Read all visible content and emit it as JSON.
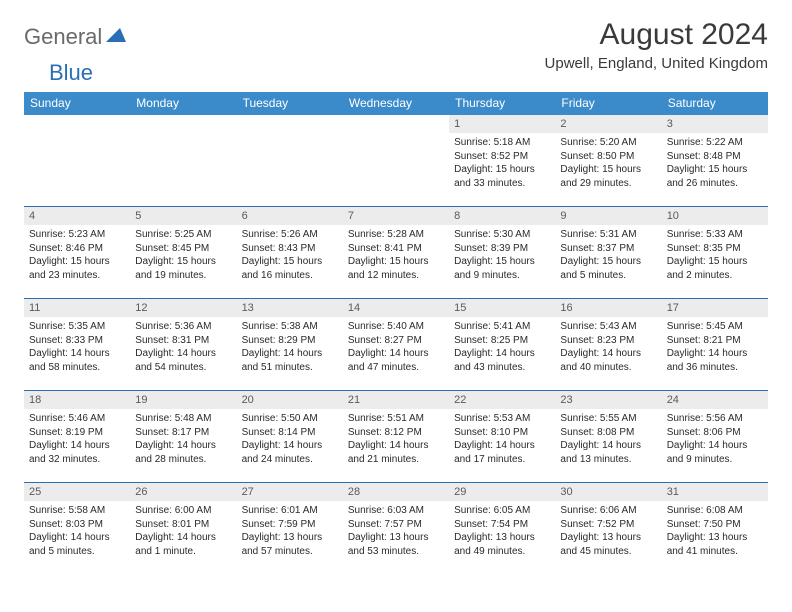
{
  "logo": {
    "part1": "General",
    "part2": "Blue",
    "triangle_color": "#2a6fb5"
  },
  "title": "August 2024",
  "location": "Upwell, England, United Kingdom",
  "header_bg": "#3b8bca",
  "daynum_bg": "#ececec",
  "border_color": "#2a6fb5",
  "daynames": [
    "Sunday",
    "Monday",
    "Tuesday",
    "Wednesday",
    "Thursday",
    "Friday",
    "Saturday"
  ],
  "weeks": [
    [
      {
        "n": "",
        "sr": "",
        "ss": "",
        "dl1": "",
        "dl2": ""
      },
      {
        "n": "",
        "sr": "",
        "ss": "",
        "dl1": "",
        "dl2": ""
      },
      {
        "n": "",
        "sr": "",
        "ss": "",
        "dl1": "",
        "dl2": ""
      },
      {
        "n": "",
        "sr": "",
        "ss": "",
        "dl1": "",
        "dl2": ""
      },
      {
        "n": "1",
        "sr": "Sunrise: 5:18 AM",
        "ss": "Sunset: 8:52 PM",
        "dl1": "Daylight: 15 hours",
        "dl2": "and 33 minutes."
      },
      {
        "n": "2",
        "sr": "Sunrise: 5:20 AM",
        "ss": "Sunset: 8:50 PM",
        "dl1": "Daylight: 15 hours",
        "dl2": "and 29 minutes."
      },
      {
        "n": "3",
        "sr": "Sunrise: 5:22 AM",
        "ss": "Sunset: 8:48 PM",
        "dl1": "Daylight: 15 hours",
        "dl2": "and 26 minutes."
      }
    ],
    [
      {
        "n": "4",
        "sr": "Sunrise: 5:23 AM",
        "ss": "Sunset: 8:46 PM",
        "dl1": "Daylight: 15 hours",
        "dl2": "and 23 minutes."
      },
      {
        "n": "5",
        "sr": "Sunrise: 5:25 AM",
        "ss": "Sunset: 8:45 PM",
        "dl1": "Daylight: 15 hours",
        "dl2": "and 19 minutes."
      },
      {
        "n": "6",
        "sr": "Sunrise: 5:26 AM",
        "ss": "Sunset: 8:43 PM",
        "dl1": "Daylight: 15 hours",
        "dl2": "and 16 minutes."
      },
      {
        "n": "7",
        "sr": "Sunrise: 5:28 AM",
        "ss": "Sunset: 8:41 PM",
        "dl1": "Daylight: 15 hours",
        "dl2": "and 12 minutes."
      },
      {
        "n": "8",
        "sr": "Sunrise: 5:30 AM",
        "ss": "Sunset: 8:39 PM",
        "dl1": "Daylight: 15 hours",
        "dl2": "and 9 minutes."
      },
      {
        "n": "9",
        "sr": "Sunrise: 5:31 AM",
        "ss": "Sunset: 8:37 PM",
        "dl1": "Daylight: 15 hours",
        "dl2": "and 5 minutes."
      },
      {
        "n": "10",
        "sr": "Sunrise: 5:33 AM",
        "ss": "Sunset: 8:35 PM",
        "dl1": "Daylight: 15 hours",
        "dl2": "and 2 minutes."
      }
    ],
    [
      {
        "n": "11",
        "sr": "Sunrise: 5:35 AM",
        "ss": "Sunset: 8:33 PM",
        "dl1": "Daylight: 14 hours",
        "dl2": "and 58 minutes."
      },
      {
        "n": "12",
        "sr": "Sunrise: 5:36 AM",
        "ss": "Sunset: 8:31 PM",
        "dl1": "Daylight: 14 hours",
        "dl2": "and 54 minutes."
      },
      {
        "n": "13",
        "sr": "Sunrise: 5:38 AM",
        "ss": "Sunset: 8:29 PM",
        "dl1": "Daylight: 14 hours",
        "dl2": "and 51 minutes."
      },
      {
        "n": "14",
        "sr": "Sunrise: 5:40 AM",
        "ss": "Sunset: 8:27 PM",
        "dl1": "Daylight: 14 hours",
        "dl2": "and 47 minutes."
      },
      {
        "n": "15",
        "sr": "Sunrise: 5:41 AM",
        "ss": "Sunset: 8:25 PM",
        "dl1": "Daylight: 14 hours",
        "dl2": "and 43 minutes."
      },
      {
        "n": "16",
        "sr": "Sunrise: 5:43 AM",
        "ss": "Sunset: 8:23 PM",
        "dl1": "Daylight: 14 hours",
        "dl2": "and 40 minutes."
      },
      {
        "n": "17",
        "sr": "Sunrise: 5:45 AM",
        "ss": "Sunset: 8:21 PM",
        "dl1": "Daylight: 14 hours",
        "dl2": "and 36 minutes."
      }
    ],
    [
      {
        "n": "18",
        "sr": "Sunrise: 5:46 AM",
        "ss": "Sunset: 8:19 PM",
        "dl1": "Daylight: 14 hours",
        "dl2": "and 32 minutes."
      },
      {
        "n": "19",
        "sr": "Sunrise: 5:48 AM",
        "ss": "Sunset: 8:17 PM",
        "dl1": "Daylight: 14 hours",
        "dl2": "and 28 minutes."
      },
      {
        "n": "20",
        "sr": "Sunrise: 5:50 AM",
        "ss": "Sunset: 8:14 PM",
        "dl1": "Daylight: 14 hours",
        "dl2": "and 24 minutes."
      },
      {
        "n": "21",
        "sr": "Sunrise: 5:51 AM",
        "ss": "Sunset: 8:12 PM",
        "dl1": "Daylight: 14 hours",
        "dl2": "and 21 minutes."
      },
      {
        "n": "22",
        "sr": "Sunrise: 5:53 AM",
        "ss": "Sunset: 8:10 PM",
        "dl1": "Daylight: 14 hours",
        "dl2": "and 17 minutes."
      },
      {
        "n": "23",
        "sr": "Sunrise: 5:55 AM",
        "ss": "Sunset: 8:08 PM",
        "dl1": "Daylight: 14 hours",
        "dl2": "and 13 minutes."
      },
      {
        "n": "24",
        "sr": "Sunrise: 5:56 AM",
        "ss": "Sunset: 8:06 PM",
        "dl1": "Daylight: 14 hours",
        "dl2": "and 9 minutes."
      }
    ],
    [
      {
        "n": "25",
        "sr": "Sunrise: 5:58 AM",
        "ss": "Sunset: 8:03 PM",
        "dl1": "Daylight: 14 hours",
        "dl2": "and 5 minutes."
      },
      {
        "n": "26",
        "sr": "Sunrise: 6:00 AM",
        "ss": "Sunset: 8:01 PM",
        "dl1": "Daylight: 14 hours",
        "dl2": "and 1 minute."
      },
      {
        "n": "27",
        "sr": "Sunrise: 6:01 AM",
        "ss": "Sunset: 7:59 PM",
        "dl1": "Daylight: 13 hours",
        "dl2": "and 57 minutes."
      },
      {
        "n": "28",
        "sr": "Sunrise: 6:03 AM",
        "ss": "Sunset: 7:57 PM",
        "dl1": "Daylight: 13 hours",
        "dl2": "and 53 minutes."
      },
      {
        "n": "29",
        "sr": "Sunrise: 6:05 AM",
        "ss": "Sunset: 7:54 PM",
        "dl1": "Daylight: 13 hours",
        "dl2": "and 49 minutes."
      },
      {
        "n": "30",
        "sr": "Sunrise: 6:06 AM",
        "ss": "Sunset: 7:52 PM",
        "dl1": "Daylight: 13 hours",
        "dl2": "and 45 minutes."
      },
      {
        "n": "31",
        "sr": "Sunrise: 6:08 AM",
        "ss": "Sunset: 7:50 PM",
        "dl1": "Daylight: 13 hours",
        "dl2": "and 41 minutes."
      }
    ]
  ]
}
